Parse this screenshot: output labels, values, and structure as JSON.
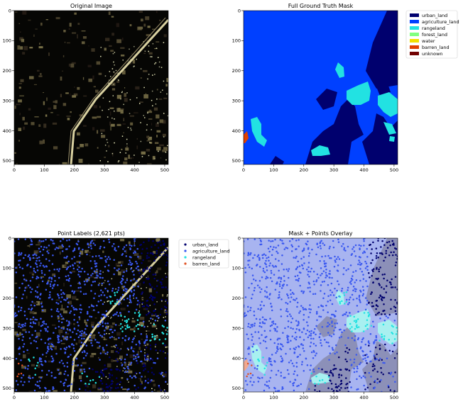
{
  "figure": {
    "panels": [
      {
        "id": "original",
        "title": "Original Image"
      },
      {
        "id": "gt_mask",
        "title": "Full Ground Truth Mask"
      },
      {
        "id": "points",
        "title": "Point Labels (2,621 pts)"
      },
      {
        "id": "overlay",
        "title": "Mask + Points Overlay"
      }
    ]
  },
  "mask_legend": [
    {
      "label": "urban_land",
      "color": "#00006e"
    },
    {
      "label": "agriculture_land",
      "color": "#0040ff"
    },
    {
      "label": "rangeland",
      "color": "#22e2e2"
    },
    {
      "label": "forest_land",
      "color": "#80ff80"
    },
    {
      "label": "water",
      "color": "#f2e000"
    },
    {
      "label": "barren_land",
      "color": "#e04000"
    },
    {
      "label": "unknown",
      "color": "#700000"
    }
  ],
  "point_legend": [
    {
      "label": "urban_land",
      "color": "#00006e"
    },
    {
      "label": "agriculture_land",
      "color": "#3a58f0"
    },
    {
      "label": "rangeland",
      "color": "#22e2e2"
    },
    {
      "label": "barren_land",
      "color": "#e05020"
    }
  ],
  "chart_data": {
    "type": "heatmap",
    "panels": 4,
    "image_size": [
      512,
      512
    ],
    "xlim": [
      0,
      512
    ],
    "ylim": [
      512,
      0
    ],
    "xticks": [
      0,
      100,
      200,
      300,
      400,
      500
    ],
    "yticks": [
      0,
      100,
      200,
      300,
      400,
      500
    ],
    "point_count": 2621,
    "classes": [
      "urban_land",
      "agriculture_land",
      "rangeland",
      "forest_land",
      "water",
      "barren_land",
      "unknown"
    ]
  }
}
